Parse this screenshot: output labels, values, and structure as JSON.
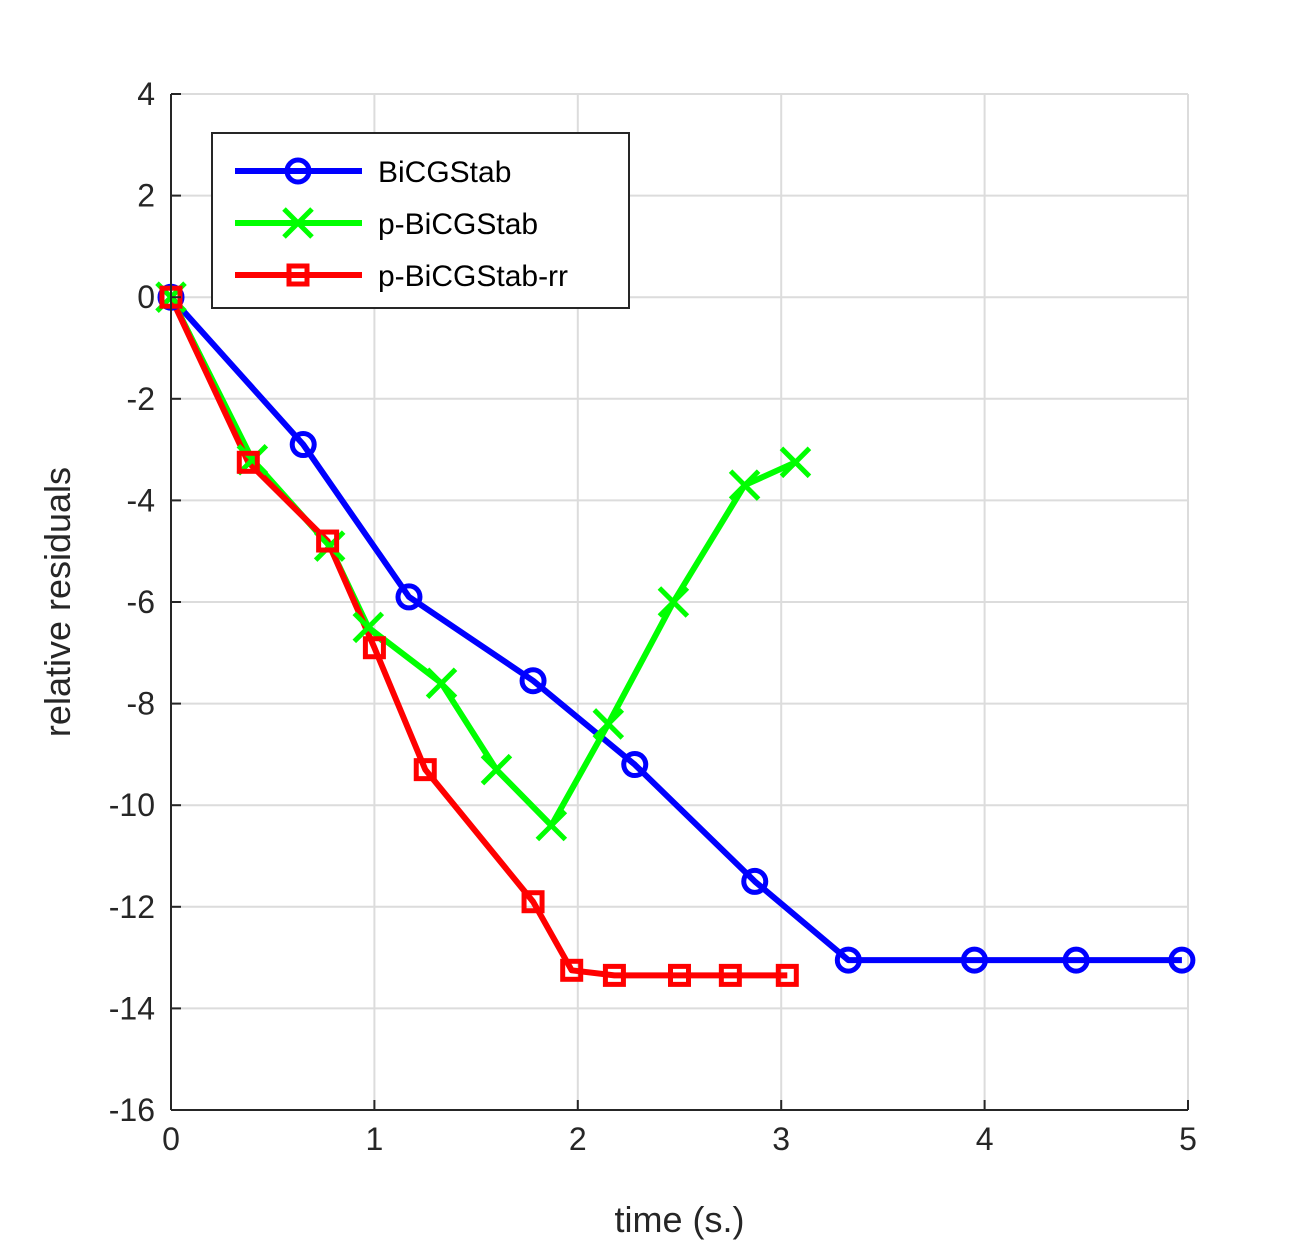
{
  "chart_data": {
    "type": "line",
    "xlabel": "time (s.)",
    "ylabel": "relative residuals",
    "xlim": [
      0,
      5
    ],
    "ylim": [
      -16,
      4
    ],
    "xticks": [
      0,
      1,
      2,
      3,
      4,
      5
    ],
    "yticks": [
      4,
      2,
      0,
      -2,
      -4,
      -6,
      -8,
      -10,
      -12,
      -14,
      -16
    ],
    "grid": true,
    "legend_position": "top-left",
    "series": [
      {
        "name": "BiCGStab",
        "color": "#0000ff",
        "marker": "circle",
        "x": [
          0,
          0.65,
          1.17,
          1.78,
          2.28,
          2.87,
          3.33,
          3.95,
          4.45,
          4.97
        ],
        "y": [
          0,
          -2.9,
          -5.9,
          -7.55,
          -9.2,
          -11.5,
          -13.05,
          -13.05,
          -13.05,
          -13.05
        ]
      },
      {
        "name": "p-BiCGStab",
        "color": "#00ff00",
        "marker": "x",
        "x": [
          0,
          0.4,
          0.78,
          0.97,
          1.33,
          1.6,
          1.87,
          2.15,
          2.47,
          2.82,
          3.07
        ],
        "y": [
          0,
          -3.2,
          -4.9,
          -6.5,
          -7.6,
          -9.3,
          -10.4,
          -8.4,
          -6.0,
          -3.7,
          -3.25
        ]
      },
      {
        "name": "p-BiCGStab-rr",
        "color": "#ff0000",
        "marker": "square",
        "x": [
          0,
          0.38,
          0.77,
          1.0,
          1.25,
          1.78,
          1.97,
          2.18,
          2.5,
          2.75,
          3.03
        ],
        "y": [
          0,
          -3.25,
          -4.8,
          -6.9,
          -9.3,
          -11.9,
          -13.25,
          -13.35,
          -13.35,
          -13.35,
          -13.35
        ]
      }
    ]
  }
}
